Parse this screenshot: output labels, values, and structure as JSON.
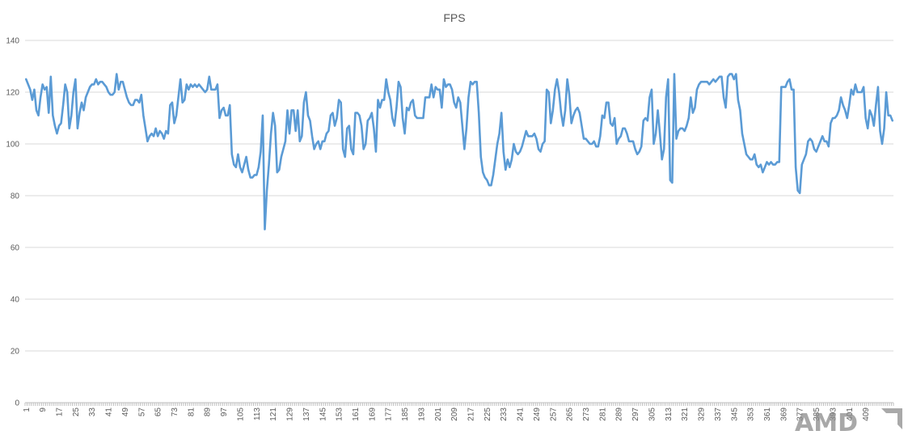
{
  "chart_data": {
    "type": "line",
    "title": "FPS",
    "xlabel": "",
    "ylabel": "",
    "ylim": [
      0,
      140
    ],
    "y_ticks": [
      0,
      20,
      40,
      60,
      80,
      100,
      120,
      140
    ],
    "x_tick_start": 1,
    "x_tick_step": 8,
    "x_tick_labels": [
      "1",
      "9",
      "17",
      "25",
      "33",
      "41",
      "49",
      "57",
      "65",
      "73",
      "81",
      "89",
      "97",
      "105",
      "113",
      "121",
      "129",
      "137",
      "145",
      "153",
      "161",
      "169",
      "177",
      "185",
      "193",
      "201",
      "209",
      "217",
      "225",
      "233",
      "241",
      "249",
      "257",
      "265",
      "273",
      "281",
      "289",
      "297",
      "305",
      "313",
      "321",
      "329",
      "337",
      "345",
      "353",
      "361",
      "369",
      "377",
      "385",
      "393",
      "401",
      "409"
    ],
    "grid": "horizontal",
    "legend": "none",
    "colors": {
      "series": "#5b9bd5",
      "grid": "#d9d9d9",
      "text": "#595959"
    },
    "series": [
      {
        "values": [
          125,
          123,
          121,
          117,
          121,
          113,
          111,
          118,
          123,
          121,
          122,
          112,
          126,
          111,
          107,
          104,
          107,
          108,
          115,
          123,
          120,
          106,
          111,
          120,
          125,
          106,
          112,
          116,
          113,
          118,
          120,
          122,
          123,
          123,
          125,
          123,
          124,
          124,
          123,
          122,
          120,
          119,
          119,
          120,
          127,
          121,
          124,
          124,
          121,
          118,
          116,
          115,
          115,
          117,
          117,
          116,
          119,
          111,
          106,
          101,
          103,
          104,
          103,
          106,
          103,
          105,
          104,
          102,
          105,
          104,
          115,
          116,
          108,
          111,
          118,
          125,
          116,
          117,
          123,
          121,
          123,
          122,
          123,
          122,
          123,
          122,
          121,
          120,
          121,
          126,
          121,
          121,
          121,
          123,
          110,
          113,
          114,
          111,
          111,
          115,
          96,
          92,
          91,
          96,
          91,
          89,
          92,
          95,
          90,
          87,
          87,
          88,
          88,
          91,
          97,
          111,
          67,
          82,
          92,
          104,
          112,
          107,
          89,
          90,
          95,
          98,
          101,
          113,
          104,
          113,
          113,
          105,
          113,
          101,
          103,
          116,
          120,
          111,
          109,
          103,
          98,
          100,
          101,
          98,
          101,
          101,
          104,
          105,
          111,
          112,
          107,
          110,
          117,
          116,
          98,
          95,
          106,
          107,
          98,
          96,
          112,
          112,
          111,
          107,
          98,
          100,
          109,
          110,
          112,
          106,
          97,
          117,
          114,
          117,
          117,
          125,
          120,
          117,
          110,
          107,
          114,
          124,
          122,
          110,
          104,
          114,
          113,
          116,
          117,
          111,
          110,
          110,
          110,
          110,
          118,
          118,
          118,
          123,
          118,
          122,
          121,
          121,
          114,
          125,
          122,
          123,
          123,
          121,
          116,
          114,
          118,
          116,
          107,
          98,
          106,
          118,
          124,
          123,
          124,
          124,
          112,
          95,
          89,
          87,
          86,
          84,
          84,
          88,
          94,
          100,
          104,
          112,
          97,
          90,
          94,
          91,
          94,
          100,
          97,
          96,
          97,
          99,
          102,
          105,
          103,
          103,
          103,
          104,
          102,
          98,
          97,
          100,
          101,
          121,
          120,
          108,
          113,
          121,
          125,
          120,
          112,
          107,
          113,
          125,
          119,
          108,
          111,
          113,
          114,
          112,
          107,
          102,
          102,
          101,
          100,
          100,
          101,
          99,
          99,
          103,
          111,
          110,
          116,
          116,
          108,
          107,
          110,
          100,
          102,
          103,
          106,
          106,
          104,
          101,
          101,
          101,
          98,
          96,
          97,
          99,
          109,
          110,
          109,
          118,
          121,
          100,
          104,
          113,
          104,
          94,
          98,
          118,
          125,
          86,
          85,
          127,
          102,
          105,
          106,
          106,
          105,
          107,
          110,
          118,
          112,
          114,
          121,
          123,
          124,
          124,
          124,
          124,
          123,
          124,
          125,
          124,
          125,
          126,
          126,
          118,
          114,
          126,
          127,
          127,
          125,
          127,
          117,
          113,
          104,
          100,
          96,
          95,
          94,
          94,
          96,
          92,
          91,
          92,
          89,
          91,
          93,
          92,
          93,
          92,
          92,
          93,
          93,
          122,
          122,
          122,
          124,
          125,
          121,
          121,
          91,
          82,
          81,
          92,
          94,
          96,
          101,
          102,
          101,
          98,
          97,
          99,
          101,
          103,
          101,
          101,
          99,
          108,
          110,
          110,
          111,
          113,
          118,
          115,
          113,
          110,
          115,
          121,
          119,
          123,
          120,
          120,
          120,
          122,
          110,
          106,
          113,
          111,
          107,
          115,
          122,
          105,
          100,
          106,
          120,
          111,
          111,
          109
        ]
      }
    ]
  },
  "watermark": {
    "logo_text": "AMD"
  }
}
